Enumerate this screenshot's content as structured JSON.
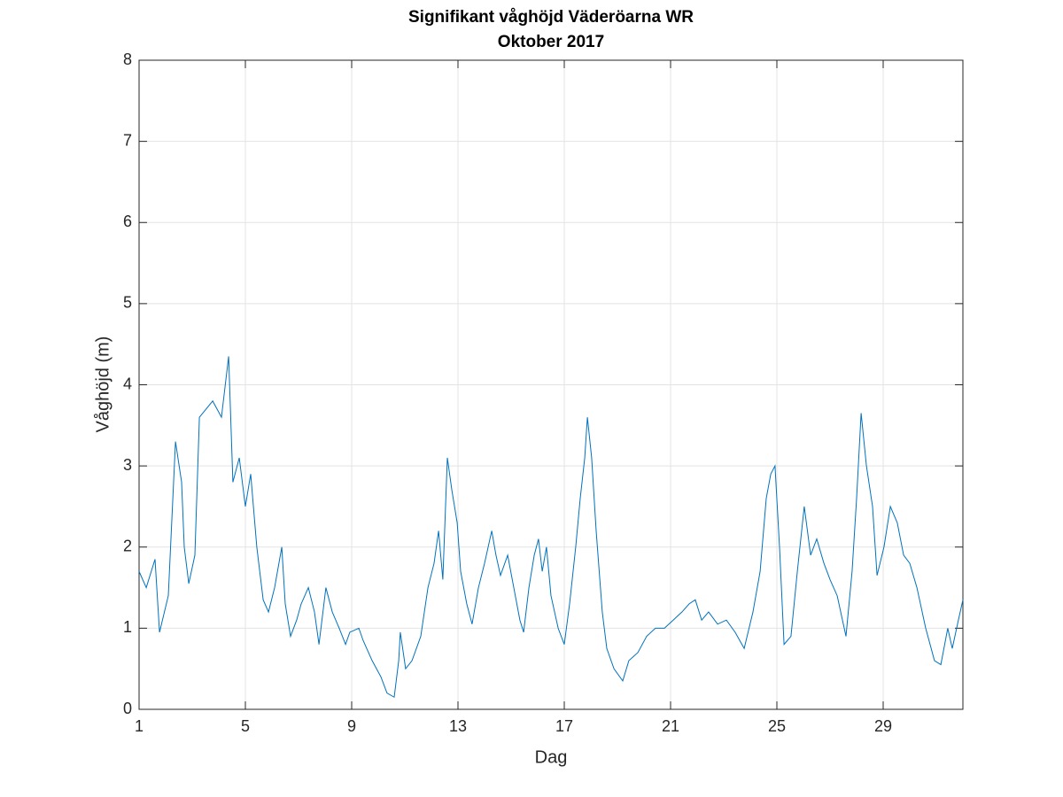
{
  "chart_data": {
    "type": "line",
    "title": "Signifikant våghöjd Väderöarna WR",
    "subtitle": "Oktober 2017",
    "x_label": "Dag",
    "y_label": "Våghöjd (m)",
    "xlim": [
      1,
      32
    ],
    "xticks": [
      1,
      5,
      9,
      13,
      17,
      21,
      25,
      29
    ],
    "ylim": [
      0,
      8
    ],
    "yticks": [
      0,
      1,
      2,
      3,
      4,
      5,
      6,
      7,
      8
    ],
    "grid": true,
    "x": [
      1.0,
      1.27,
      1.6,
      1.77,
      2.1,
      2.37,
      2.6,
      2.7,
      2.87,
      3.1,
      3.27,
      3.77,
      4.1,
      4.37,
      4.53,
      4.77,
      5.0,
      5.2,
      5.43,
      5.67,
      5.87,
      6.1,
      6.37,
      6.5,
      6.7,
      6.93,
      7.1,
      7.37,
      7.6,
      7.77,
      8.03,
      8.27,
      8.53,
      8.77,
      8.93,
      9.27,
      9.43,
      9.77,
      10.1,
      10.33,
      10.6,
      10.77,
      10.83,
      11.03,
      11.27,
      11.6,
      11.87,
      12.1,
      12.27,
      12.43,
      12.6,
      12.77,
      12.97,
      13.1,
      13.33,
      13.53,
      13.77,
      14.0,
      14.27,
      14.43,
      14.6,
      14.87,
      15.1,
      15.33,
      15.47,
      15.67,
      15.87,
      16.03,
      16.17,
      16.33,
      16.5,
      16.77,
      17.0,
      17.2,
      17.43,
      17.6,
      17.77,
      17.87,
      18.03,
      18.2,
      18.43,
      18.6,
      18.87,
      19.2,
      19.43,
      19.77,
      20.1,
      20.43,
      20.77,
      21.1,
      21.43,
      21.7,
      21.93,
      22.17,
      22.43,
      22.77,
      23.1,
      23.43,
      23.77,
      24.1,
      24.37,
      24.6,
      24.77,
      24.93,
      25.1,
      25.27,
      25.53,
      25.77,
      26.03,
      26.27,
      26.5,
      26.77,
      27.0,
      27.27,
      27.6,
      27.83,
      28.0,
      28.17,
      28.37,
      28.6,
      28.77,
      29.03,
      29.27,
      29.53,
      29.77,
      30.0,
      30.27,
      30.6,
      30.93,
      31.17,
      31.43,
      31.6,
      31.83,
      32.0
    ],
    "series": [
      {
        "color": "#0072bd",
        "values": [
          1.7,
          1.5,
          1.85,
          0.95,
          1.4,
          3.3,
          2.8,
          2.0,
          1.55,
          1.9,
          3.6,
          3.8,
          3.6,
          4.35,
          2.8,
          3.1,
          2.5,
          2.9,
          2.0,
          1.35,
          1.2,
          1.5,
          2.0,
          1.3,
          0.9,
          1.1,
          1.3,
          1.5,
          1.2,
          0.8,
          1.5,
          1.2,
          1.0,
          0.8,
          0.95,
          1.0,
          0.85,
          0.6,
          0.4,
          0.2,
          0.15,
          0.6,
          0.95,
          0.5,
          0.6,
          0.9,
          1.5,
          1.8,
          2.2,
          1.6,
          3.1,
          2.7,
          2.3,
          1.7,
          1.3,
          1.05,
          1.5,
          1.8,
          2.2,
          1.9,
          1.65,
          1.9,
          1.5,
          1.1,
          0.95,
          1.5,
          1.9,
          2.1,
          1.7,
          2.0,
          1.4,
          1.0,
          0.8,
          1.3,
          2.0,
          2.6,
          3.1,
          3.6,
          3.1,
          2.2,
          1.2,
          0.75,
          0.5,
          0.35,
          0.6,
          0.7,
          0.9,
          1.0,
          1.0,
          1.1,
          1.2,
          1.3,
          1.35,
          1.1,
          1.2,
          1.05,
          1.1,
          0.95,
          0.75,
          1.2,
          1.7,
          2.6,
          2.9,
          3.0,
          2.0,
          0.8,
          0.9,
          1.7,
          2.5,
          1.9,
          2.1,
          1.8,
          1.6,
          1.4,
          0.9,
          1.7,
          2.6,
          3.65,
          3.0,
          2.5,
          1.65,
          2.0,
          2.5,
          2.3,
          1.9,
          1.8,
          1.5,
          1.0,
          0.6,
          0.55,
          1.0,
          0.75,
          1.1,
          1.35
        ]
      }
    ]
  }
}
